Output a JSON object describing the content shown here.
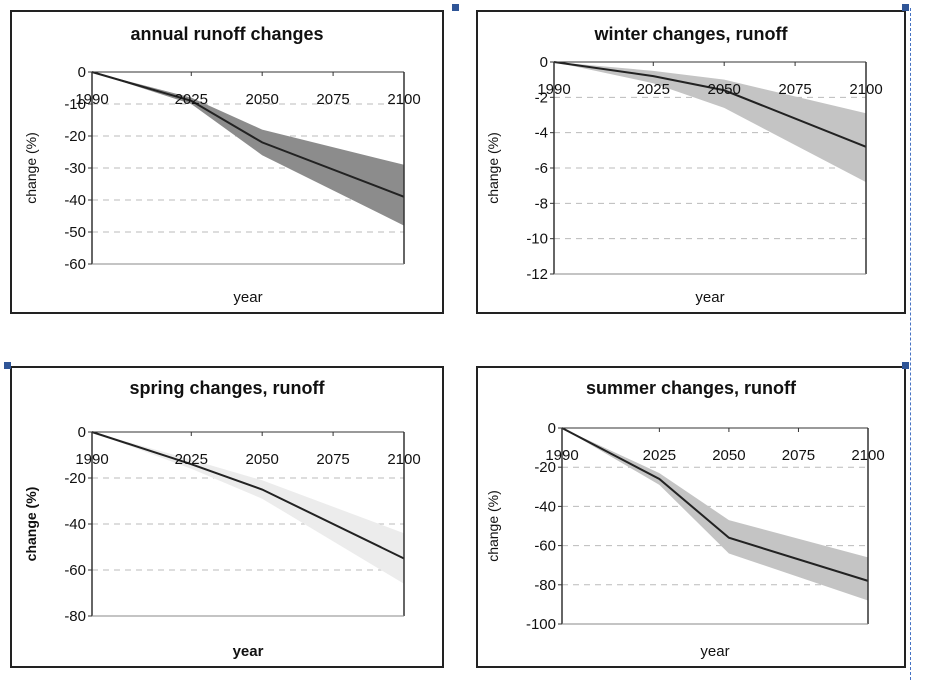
{
  "colors": {
    "line": "#222222",
    "dark_band": "#8c8c8c",
    "mid_band": "#c4c4c4",
    "light_band": "#ececec",
    "grid": "#bbbbbb",
    "selection": "#2f5597"
  },
  "chart_data": [
    {
      "type": "area",
      "title": "annual runoff changes",
      "xlabel": "year",
      "ylabel": "change (%)",
      "x": [
        1990,
        2025,
        2050,
        2100
      ],
      "x_ticks": [
        1990,
        2025,
        2050,
        2075,
        2100
      ],
      "y_ticks": [
        0,
        -10,
        -20,
        -30,
        -40,
        -50,
        -60
      ],
      "y_tick_labels": [
        "0",
        "-10",
        "-20",
        "-30",
        "-40",
        "-50",
        "-60"
      ],
      "ylim": [
        -60,
        0
      ],
      "grid": true,
      "series": [
        {
          "role": "central",
          "values": [
            0,
            -9,
            -22,
            -39
          ]
        },
        {
          "role": "band_upper",
          "values": [
            0,
            -8,
            -18,
            -29
          ]
        },
        {
          "role": "band_lower",
          "values": [
            0,
            -10,
            -26,
            -48
          ]
        }
      ]
    },
    {
      "type": "area",
      "title": "winter changes, runoff",
      "xlabel": "year",
      "ylabel": "change (%)",
      "x": [
        1990,
        2025,
        2050,
        2100
      ],
      "x_ticks": [
        1990,
        2025,
        2050,
        2075,
        2100
      ],
      "y_ticks": [
        0,
        -2,
        -4,
        -6,
        -8,
        -10,
        -12
      ],
      "y_tick_labels": [
        "0",
        "-2",
        "-4",
        "-6",
        "-8",
        "-10",
        "-12"
      ],
      "ylim": [
        -12,
        0
      ],
      "grid": true,
      "series": [
        {
          "role": "central",
          "values": [
            0,
            -0.8,
            -1.6,
            -4.8
          ]
        },
        {
          "role": "band_upper",
          "values": [
            0,
            -0.5,
            -1.0,
            -2.9
          ]
        },
        {
          "role": "band_lower",
          "values": [
            0,
            -1.2,
            -2.6,
            -6.8
          ]
        }
      ]
    },
    {
      "type": "area",
      "title": "spring changes, runoff",
      "xlabel": "year",
      "ylabel": "change (%)",
      "x": [
        1990,
        2025,
        2050,
        2100
      ],
      "x_ticks": [
        1990,
        2025,
        2050,
        2075,
        2100
      ],
      "y_ticks": [
        0,
        -20,
        -40,
        -60,
        -80
      ],
      "y_tick_labels": [
        "0",
        "-20",
        "-40",
        "-60",
        "-80"
      ],
      "ylim": [
        -80,
        0
      ],
      "grid": true,
      "series": [
        {
          "role": "central",
          "values": [
            0,
            -14,
            -25,
            -55
          ]
        },
        {
          "role": "band_upper",
          "values": [
            0,
            -12,
            -21,
            -44
          ]
        },
        {
          "role": "band_lower",
          "values": [
            0,
            -16,
            -29,
            -66
          ]
        }
      ]
    },
    {
      "type": "area",
      "title": "summer changes, runoff",
      "xlabel": "year",
      "ylabel": "change (%)",
      "x": [
        1990,
        2025,
        2050,
        2100
      ],
      "x_ticks": [
        1990,
        2025,
        2050,
        2075,
        2100
      ],
      "y_ticks": [
        0,
        -20,
        -40,
        -60,
        -80,
        -100
      ],
      "y_tick_labels": [
        "0",
        "-20",
        "-40",
        "-60",
        "-80",
        "-100"
      ],
      "ylim": [
        -100,
        0
      ],
      "grid": true,
      "series": [
        {
          "role": "central",
          "values": [
            0,
            -26,
            -56,
            -78
          ]
        },
        {
          "role": "band_upper",
          "values": [
            0,
            -23,
            -47,
            -66
          ]
        },
        {
          "role": "band_lower",
          "values": [
            0,
            -29,
            -64,
            -88
          ]
        }
      ]
    }
  ]
}
